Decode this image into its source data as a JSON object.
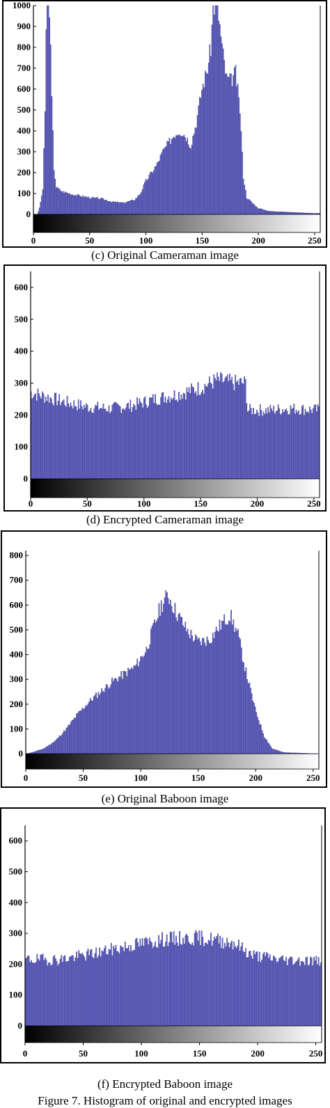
{
  "figure_caption": "Figure 7. Histogram of original and encrypted images",
  "colors": {
    "bar_fill": "#6a6ad0",
    "bar_stroke": "#2c2c7a"
  },
  "chart_data": [
    {
      "type": "bar",
      "caption": "(c) Original Cameraman image",
      "xlim": [
        0,
        255
      ],
      "ylim": [
        0,
        1000
      ],
      "xticks": [
        0,
        50,
        100,
        150,
        200,
        250
      ],
      "yticks": [
        0,
        100,
        200,
        300,
        400,
        500,
        600,
        700,
        800,
        900,
        1000
      ],
      "keypoints": [
        [
          0,
          0
        ],
        [
          3,
          0
        ],
        [
          5,
          30
        ],
        [
          8,
          120
        ],
        [
          10,
          480
        ],
        [
          11,
          900
        ],
        [
          12,
          1000
        ],
        [
          14,
          1000
        ],
        [
          16,
          550
        ],
        [
          18,
          220
        ],
        [
          20,
          130
        ],
        [
          25,
          110
        ],
        [
          35,
          95
        ],
        [
          50,
          80
        ],
        [
          60,
          75
        ],
        [
          70,
          60
        ],
        [
          80,
          55
        ],
        [
          90,
          70
        ],
        [
          95,
          100
        ],
        [
          100,
          160
        ],
        [
          105,
          200
        ],
        [
          110,
          240
        ],
        [
          115,
          300
        ],
        [
          120,
          340
        ],
        [
          125,
          380
        ],
        [
          130,
          400
        ],
        [
          135,
          380
        ],
        [
          140,
          330
        ],
        [
          145,
          440
        ],
        [
          150,
          600
        ],
        [
          155,
          700
        ],
        [
          158,
          800
        ],
        [
          160,
          1000
        ],
        [
          164,
          1000
        ],
        [
          168,
          800
        ],
        [
          172,
          650
        ],
        [
          176,
          640
        ],
        [
          180,
          680
        ],
        [
          184,
          500
        ],
        [
          187,
          180
        ],
        [
          190,
          80
        ],
        [
          200,
          30
        ],
        [
          210,
          15
        ],
        [
          230,
          10
        ],
        [
          250,
          5
        ],
        [
          255,
          5
        ]
      ],
      "noise": 0.06,
      "seed": 3
    },
    {
      "type": "bar",
      "caption": "(d) Encrypted Cameraman image",
      "xlim": [
        0,
        255
      ],
      "ylim": [
        0,
        650
      ],
      "xticks": [
        0,
        50,
        100,
        150,
        200,
        250
      ],
      "yticks": [
        0,
        100,
        200,
        300,
        400,
        500,
        600
      ],
      "keypoints": [
        [
          0,
          270
        ],
        [
          10,
          260
        ],
        [
          30,
          240
        ],
        [
          50,
          225
        ],
        [
          70,
          220
        ],
        [
          90,
          230
        ],
        [
          110,
          250
        ],
        [
          130,
          265
        ],
        [
          150,
          285
        ],
        [
          165,
          310
        ],
        [
          180,
          300
        ],
        [
          190,
          300
        ],
        [
          192,
          215
        ],
        [
          210,
          215
        ],
        [
          230,
          220
        ],
        [
          255,
          215
        ]
      ],
      "noise": 0.09,
      "seed": 7
    },
    {
      "type": "bar",
      "caption": "(e) Original Baboon image",
      "xlim": [
        0,
        255
      ],
      "ylim": [
        0,
        820
      ],
      "xticks": [
        0,
        50,
        100,
        150,
        200,
        250
      ],
      "yticks": [
        0,
        100,
        200,
        300,
        400,
        500,
        600,
        700,
        800
      ],
      "keypoints": [
        [
          0,
          0
        ],
        [
          5,
          5
        ],
        [
          15,
          20
        ],
        [
          25,
          50
        ],
        [
          35,
          100
        ],
        [
          45,
          160
        ],
        [
          55,
          210
        ],
        [
          65,
          250
        ],
        [
          75,
          290
        ],
        [
          85,
          320
        ],
        [
          95,
          350
        ],
        [
          105,
          420
        ],
        [
          112,
          520
        ],
        [
          118,
          600
        ],
        [
          124,
          640
        ],
        [
          130,
          580
        ],
        [
          140,
          500
        ],
        [
          150,
          450
        ],
        [
          160,
          460
        ],
        [
          170,
          520
        ],
        [
          178,
          560
        ],
        [
          185,
          480
        ],
        [
          192,
          330
        ],
        [
          200,
          180
        ],
        [
          208,
          70
        ],
        [
          215,
          20
        ],
        [
          225,
          5
        ],
        [
          255,
          0
        ]
      ],
      "noise": 0.06,
      "seed": 11
    },
    {
      "type": "bar",
      "caption": "(f) Encrypted Baboon image",
      "xlim": [
        0,
        255
      ],
      "ylim": [
        0,
        650
      ],
      "xticks": [
        0,
        50,
        100,
        150,
        200,
        250
      ],
      "yticks": [
        0,
        100,
        200,
        300,
        400,
        500,
        600
      ],
      "keypoints": [
        [
          0,
          215
        ],
        [
          30,
          215
        ],
        [
          60,
          235
        ],
        [
          90,
          260
        ],
        [
          120,
          280
        ],
        [
          150,
          285
        ],
        [
          180,
          270
        ],
        [
          195,
          230
        ],
        [
          220,
          215
        ],
        [
          255,
          210
        ]
      ],
      "noise": 0.09,
      "seed": 19
    }
  ]
}
